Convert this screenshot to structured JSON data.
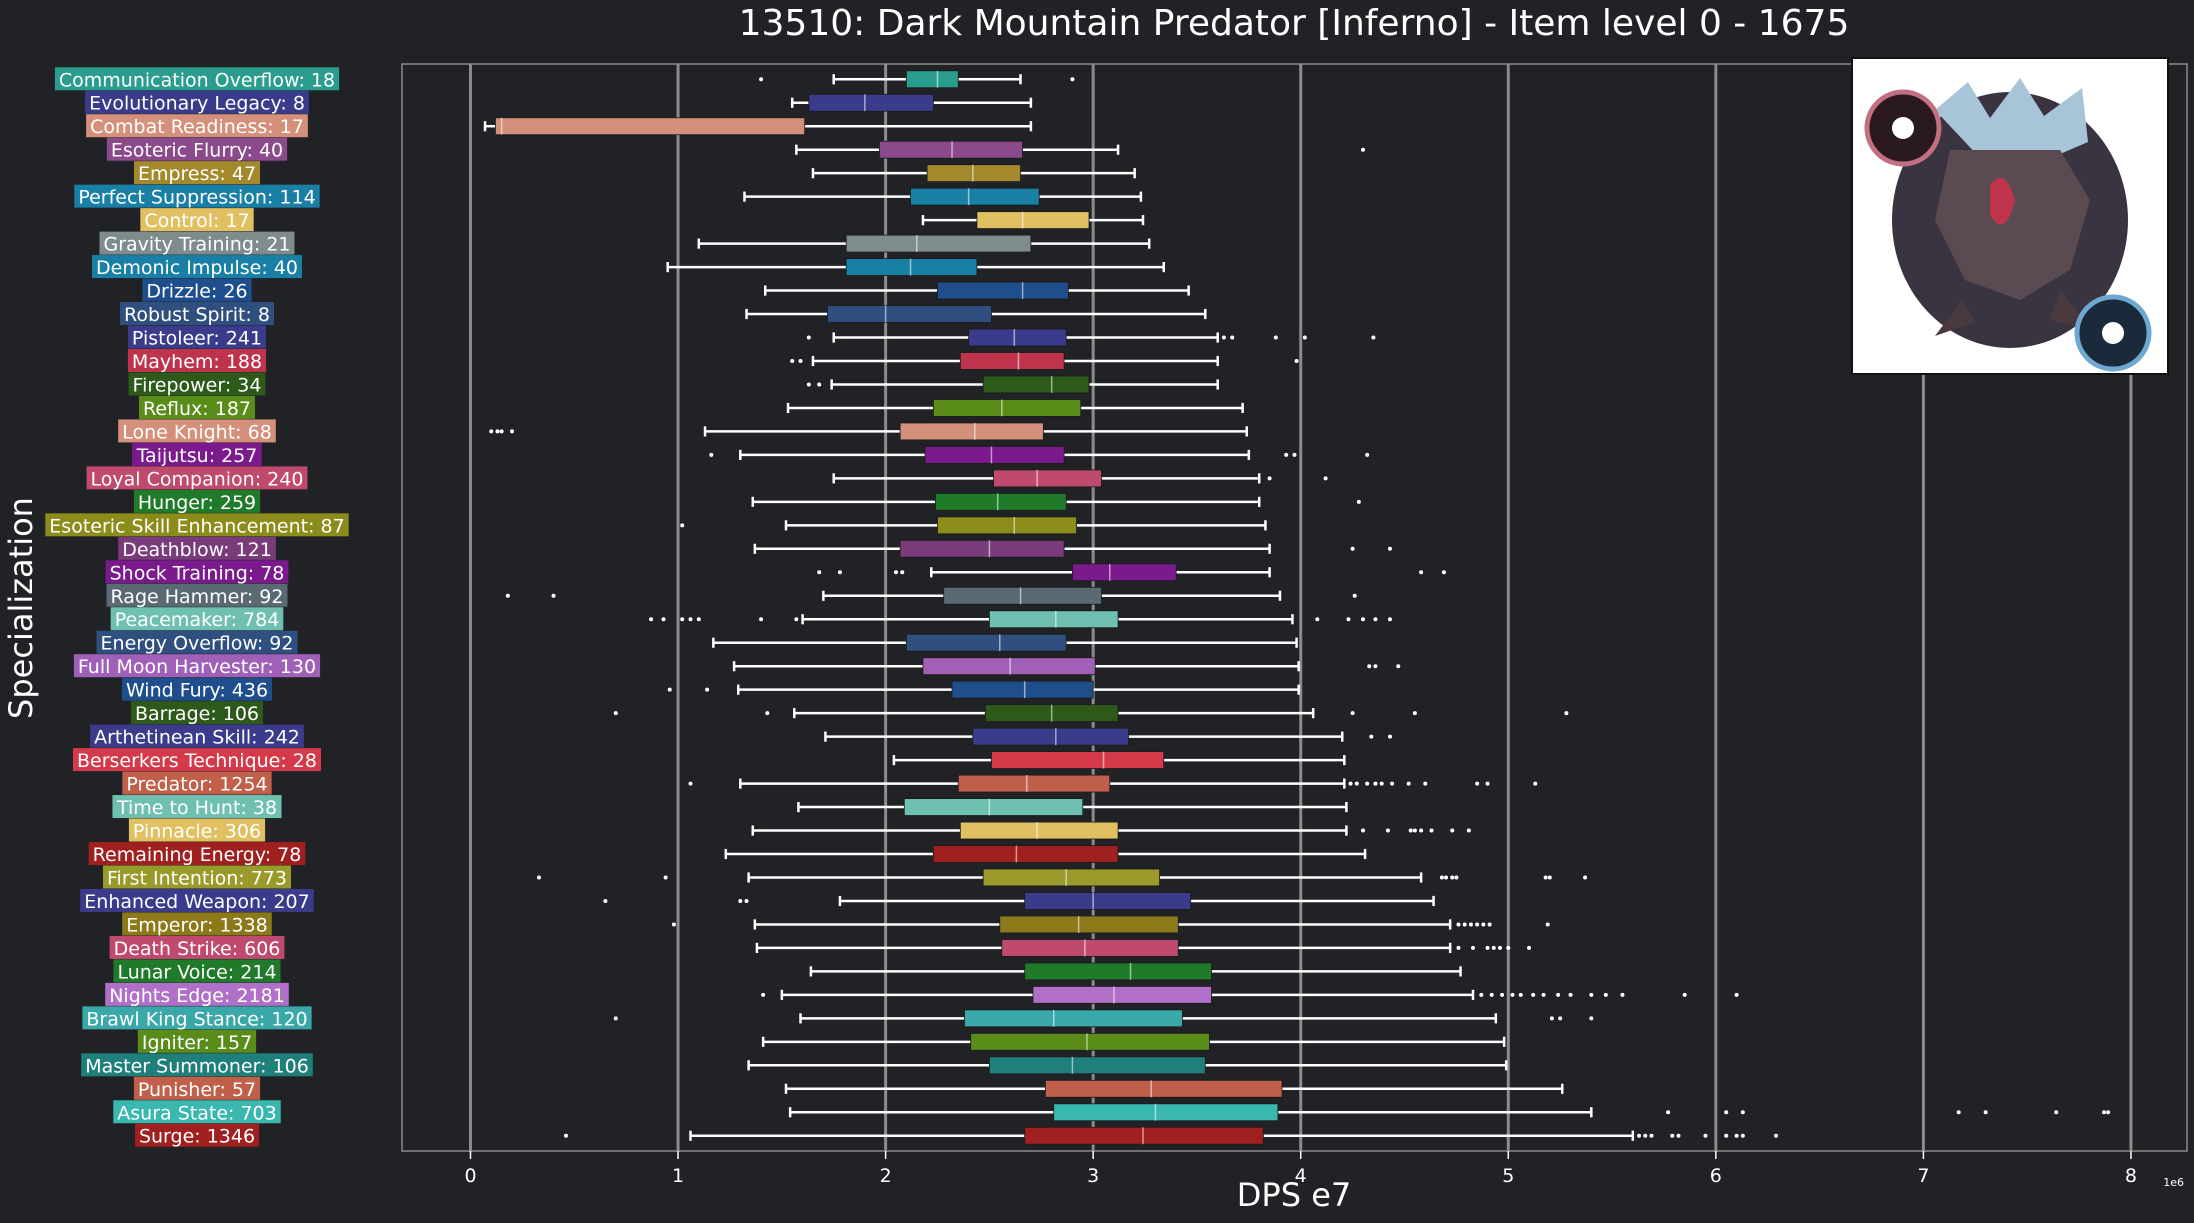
{
  "chart_data": {
    "type": "boxplot",
    "orientation": "horizontal",
    "title": "13510: Dark Mountain Predator [Inferno] - Item level 0 - 1675",
    "xlabel": "DPS e7",
    "ylabel": "Specialization",
    "x_offset_label": "1e6",
    "xlim": [
      -0.33,
      8.27
    ],
    "xticks": [
      0,
      1,
      2,
      3,
      4,
      5,
      6,
      7,
      8
    ],
    "grid": "vertical",
    "legend": "none",
    "thumbnail_icon": "dark-mountain-predator-portrait",
    "colors": {
      "background": "#202226",
      "text": "#ffffff",
      "grid": "#8c8c8c",
      "whisker": "#ffffff",
      "outlier": "#ffffff"
    },
    "boxes": [
      {
        "label": "Communication Overflow: 18",
        "color": "#2a9d8f",
        "whislo": 1.75,
        "q1": 2.1,
        "med": 2.25,
        "q3": 2.35,
        "whishi": 2.65,
        "fliers": [
          1.4,
          2.9
        ]
      },
      {
        "label": "Evolutionary Legacy: 8",
        "color": "#3b3b8c",
        "whislo": 1.55,
        "q1": 1.63,
        "med": 1.9,
        "q3": 2.23,
        "whishi": 2.7,
        "fliers": []
      },
      {
        "label": "Combat Readiness: 17",
        "color": "#d4907a",
        "whislo": 0.07,
        "q1": 0.12,
        "med": 0.15,
        "q3": 1.61,
        "whishi": 2.7,
        "fliers": []
      },
      {
        "label": "Esoteric Flurry: 40",
        "color": "#8b4a8b",
        "whislo": 1.57,
        "q1": 1.97,
        "med": 2.32,
        "q3": 2.66,
        "whishi": 3.12,
        "fliers": [
          4.3
        ]
      },
      {
        "label": "Empress: 47",
        "color": "#a3892c",
        "whislo": 1.65,
        "q1": 2.2,
        "med": 2.42,
        "q3": 2.65,
        "whishi": 3.2,
        "fliers": []
      },
      {
        "label": "Perfect Suppression: 114",
        "color": "#1a7fa5",
        "whislo": 1.32,
        "q1": 2.12,
        "med": 2.4,
        "q3": 2.74,
        "whishi": 3.23,
        "fliers": []
      },
      {
        "label": "Control: 17",
        "color": "#e0c060",
        "whislo": 2.18,
        "q1": 2.44,
        "med": 2.66,
        "q3": 2.98,
        "whishi": 3.24,
        "fliers": []
      },
      {
        "label": "Gravity Training: 21",
        "color": "#7f8c8d",
        "whislo": 1.1,
        "q1": 1.81,
        "med": 2.15,
        "q3": 2.7,
        "whishi": 3.27,
        "fliers": []
      },
      {
        "label": "Demonic Impulse: 40",
        "color": "#1a7fa5",
        "whislo": 0.95,
        "q1": 1.81,
        "med": 2.12,
        "q3": 2.44,
        "whishi": 3.34,
        "fliers": []
      },
      {
        "label": "Drizzle: 26",
        "color": "#1f4e8c",
        "whislo": 1.42,
        "q1": 2.25,
        "med": 2.66,
        "q3": 2.88,
        "whishi": 3.46,
        "fliers": []
      },
      {
        "label": "Robust Spirit: 8",
        "color": "#2f4f7f",
        "whislo": 1.33,
        "q1": 1.72,
        "med": 2.0,
        "q3": 2.51,
        "whishi": 3.54,
        "fliers": []
      },
      {
        "label": "Pistoleer: 241",
        "color": "#3b3b8c",
        "whislo": 1.75,
        "q1": 2.4,
        "med": 2.62,
        "q3": 2.87,
        "whishi": 3.6,
        "fliers": [
          1.63,
          3.63,
          3.67,
          3.88,
          4.02,
          4.35
        ]
      },
      {
        "label": "Mayhem: 188",
        "color": "#c0334d",
        "whislo": 1.65,
        "q1": 2.36,
        "med": 2.64,
        "q3": 2.86,
        "whishi": 3.6,
        "fliers": [
          1.55,
          1.59,
          3.98
        ]
      },
      {
        "label": "Firepower: 34",
        "color": "#2d5a1b",
        "whislo": 1.74,
        "q1": 2.47,
        "med": 2.8,
        "q3": 2.98,
        "whishi": 3.6,
        "fliers": [
          1.63,
          1.68
        ]
      },
      {
        "label": "Reflux: 187",
        "color": "#5a8c1a",
        "whislo": 1.53,
        "q1": 2.23,
        "med": 2.56,
        "q3": 2.94,
        "whishi": 3.72,
        "fliers": []
      },
      {
        "label": "Lone Knight: 68",
        "color": "#d4907a",
        "whislo": 1.13,
        "q1": 2.07,
        "med": 2.43,
        "q3": 2.76,
        "whishi": 3.74,
        "fliers": [
          0.1,
          0.13,
          0.15,
          0.2
        ]
      },
      {
        "label": "Taijutsu: 257",
        "color": "#7a1a8c",
        "whislo": 1.3,
        "q1": 2.19,
        "med": 2.51,
        "q3": 2.86,
        "whishi": 3.75,
        "fliers": [
          1.16,
          3.93,
          3.97,
          4.32
        ]
      },
      {
        "label": "Loyal Companion: 240",
        "color": "#c04a6e",
        "whislo": 1.75,
        "q1": 2.52,
        "med": 2.73,
        "q3": 3.04,
        "whishi": 3.8,
        "fliers": [
          3.85,
          4.12
        ]
      },
      {
        "label": "Hunger: 259",
        "color": "#1f7a2a",
        "whislo": 1.36,
        "q1": 2.24,
        "med": 2.54,
        "q3": 2.87,
        "whishi": 3.8,
        "fliers": [
          4.28
        ]
      },
      {
        "label": "Esoteric Skill Enhancement: 87",
        "color": "#8c8c1a",
        "whislo": 1.52,
        "q1": 2.25,
        "med": 2.62,
        "q3": 2.92,
        "whishi": 3.83,
        "fliers": [
          1.02
        ]
      },
      {
        "label": "Deathblow: 121",
        "color": "#7a3b7a",
        "whislo": 1.37,
        "q1": 2.07,
        "med": 2.5,
        "q3": 2.86,
        "whishi": 3.85,
        "fliers": [
          4.25,
          4.43
        ]
      },
      {
        "label": "Shock Training: 78",
        "color": "#7a1a8c",
        "whislo": 2.22,
        "q1": 2.9,
        "med": 3.08,
        "q3": 3.4,
        "whishi": 3.85,
        "fliers": [
          1.68,
          1.78,
          2.05,
          2.08,
          4.58,
          4.69
        ]
      },
      {
        "label": "Rage Hammer: 92",
        "color": "#5a6a72",
        "whislo": 1.7,
        "q1": 2.28,
        "med": 2.65,
        "q3": 3.04,
        "whishi": 3.9,
        "fliers": [
          0.18,
          0.4,
          4.26
        ]
      },
      {
        "label": "Peacemaker: 784",
        "color": "#6fc0b0",
        "whislo": 1.6,
        "q1": 2.5,
        "med": 2.82,
        "q3": 3.12,
        "whishi": 3.96,
        "fliers": [
          0.87,
          0.93,
          1.02,
          1.06,
          1.1,
          1.4,
          1.57,
          4.08,
          4.23,
          4.3,
          4.36,
          4.43
        ]
      },
      {
        "label": "Energy Overflow: 92",
        "color": "#2f4f7f",
        "whislo": 1.17,
        "q1": 2.1,
        "med": 2.55,
        "q3": 2.87,
        "whishi": 3.98,
        "fliers": []
      },
      {
        "label": "Full Moon Harvester: 130",
        "color": "#a060b8",
        "whislo": 1.27,
        "q1": 2.18,
        "med": 2.6,
        "q3": 3.01,
        "whishi": 3.99,
        "fliers": [
          4.33,
          4.36,
          4.47
        ]
      },
      {
        "label": "Wind Fury: 436",
        "color": "#1f4e8c",
        "whislo": 1.29,
        "q1": 2.32,
        "med": 2.67,
        "q3": 3.0,
        "whishi": 3.99,
        "fliers": [
          0.96,
          1.14
        ]
      },
      {
        "label": "Barrage: 106",
        "color": "#2d5a1b",
        "whislo": 1.56,
        "q1": 2.48,
        "med": 2.8,
        "q3": 3.12,
        "whishi": 4.06,
        "fliers": [
          0.7,
          1.43,
          4.25,
          4.55,
          5.28
        ]
      },
      {
        "label": "Arthetinean Skill: 242",
        "color": "#3b3b8c",
        "whislo": 1.71,
        "q1": 2.42,
        "med": 2.82,
        "q3": 3.17,
        "whishi": 4.2,
        "fliers": [
          4.34,
          4.43
        ]
      },
      {
        "label": "Berserkers Technique: 28",
        "color": "#d43a4a",
        "whislo": 2.04,
        "q1": 2.51,
        "med": 3.05,
        "q3": 3.34,
        "whishi": 4.21,
        "fliers": []
      },
      {
        "label": "Predator: 1254",
        "color": "#c0604a",
        "whislo": 1.3,
        "q1": 2.35,
        "med": 2.68,
        "q3": 3.08,
        "whishi": 4.21,
        "fliers": [
          1.06,
          4.24,
          4.27,
          4.32,
          4.36,
          4.39,
          4.44,
          4.52,
          4.6,
          4.85,
          4.9,
          5.13
        ]
      },
      {
        "label": "Time to Hunt: 38",
        "color": "#6fc0b0",
        "whislo": 1.58,
        "q1": 2.09,
        "med": 2.5,
        "q3": 2.95,
        "whishi": 4.22,
        "fliers": []
      },
      {
        "label": "Pinnacle: 306",
        "color": "#e0c060",
        "whislo": 1.36,
        "q1": 2.36,
        "med": 2.73,
        "q3": 3.12,
        "whishi": 4.22,
        "fliers": [
          4.3,
          4.42,
          4.53,
          4.55,
          4.58,
          4.63,
          4.73,
          4.81
        ]
      },
      {
        "label": "Remaining Energy: 78",
        "color": "#a01f1f",
        "whislo": 1.23,
        "q1": 2.23,
        "med": 2.63,
        "q3": 3.12,
        "whishi": 4.31,
        "fliers": []
      },
      {
        "label": "First Intention: 773",
        "color": "#9a9a2a",
        "whislo": 1.34,
        "q1": 2.47,
        "med": 2.87,
        "q3": 3.32,
        "whishi": 4.58,
        "fliers": [
          0.33,
          0.94,
          4.68,
          4.7,
          4.73,
          4.75,
          5.18,
          5.2,
          5.37
        ]
      },
      {
        "label": "Enhanced Weapon: 207",
        "color": "#3b3b8c",
        "whislo": 1.78,
        "q1": 2.67,
        "med": 3.0,
        "q3": 3.47,
        "whishi": 4.64,
        "fliers": [
          0.65,
          1.3,
          1.33
        ]
      },
      {
        "label": "Emperor: 1338",
        "color": "#8c7a1a",
        "whislo": 1.37,
        "q1": 2.55,
        "med": 2.93,
        "q3": 3.41,
        "whishi": 4.72,
        "fliers": [
          0.98,
          4.76,
          4.79,
          4.82,
          4.85,
          4.88,
          4.91,
          5.19
        ]
      },
      {
        "label": "Death Strike: 606",
        "color": "#c04a6e",
        "whislo": 1.38,
        "q1": 2.56,
        "med": 2.96,
        "q3": 3.41,
        "whishi": 4.72,
        "fliers": [
          4.76,
          4.83,
          4.9,
          4.93,
          4.96,
          5.0,
          5.1
        ]
      },
      {
        "label": "Lunar Voice: 214",
        "color": "#1f7a2a",
        "whislo": 1.64,
        "q1": 2.67,
        "med": 3.18,
        "q3": 3.57,
        "whishi": 4.77,
        "fliers": []
      },
      {
        "label": "Nights Edge: 2181",
        "color": "#b070c8",
        "whislo": 1.5,
        "q1": 2.71,
        "med": 3.1,
        "q3": 3.57,
        "whishi": 4.83,
        "fliers": [
          1.41,
          4.87,
          4.92,
          4.97,
          5.02,
          5.06,
          5.12,
          5.17,
          5.24,
          5.3,
          5.4,
          5.47,
          5.55,
          5.85,
          6.1
        ]
      },
      {
        "label": "Brawl King Stance: 120",
        "color": "#3aa8a8",
        "whislo": 1.59,
        "q1": 2.38,
        "med": 2.81,
        "q3": 3.43,
        "whishi": 4.94,
        "fliers": [
          0.7,
          5.21,
          5.25,
          5.4
        ]
      },
      {
        "label": "Igniter: 157",
        "color": "#5a8c1a",
        "whislo": 1.41,
        "q1": 2.41,
        "med": 2.97,
        "q3": 3.56,
        "whishi": 4.98,
        "fliers": []
      },
      {
        "label": "Master Summoner: 106",
        "color": "#1f7f7a",
        "whislo": 1.34,
        "q1": 2.5,
        "med": 2.9,
        "q3": 3.54,
        "whishi": 4.99,
        "fliers": []
      },
      {
        "label": "Punisher: 57",
        "color": "#c0604a",
        "whislo": 1.52,
        "q1": 2.77,
        "med": 3.28,
        "q3": 3.91,
        "whishi": 5.26,
        "fliers": []
      },
      {
        "label": "Asura State: 703",
        "color": "#3ab8b0",
        "whislo": 1.54,
        "q1": 2.81,
        "med": 3.3,
        "q3": 3.89,
        "whishi": 5.4,
        "fliers": [
          5.77,
          6.05,
          6.13,
          7.17,
          7.3,
          7.64,
          7.87,
          7.89
        ]
      },
      {
        "label": "Surge: 1346",
        "color": "#a01f1f",
        "whislo": 1.06,
        "q1": 2.67,
        "med": 3.24,
        "q3": 3.82,
        "whishi": 5.6,
        "fliers": [
          0.46,
          5.63,
          5.66,
          5.69,
          5.79,
          5.82,
          5.95,
          6.05,
          6.1,
          6.13,
          6.29
        ]
      }
    ]
  }
}
